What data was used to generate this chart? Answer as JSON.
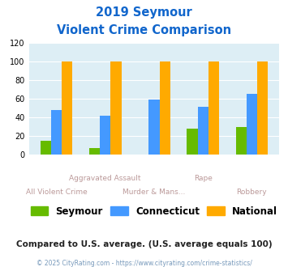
{
  "title_line1": "2019 Seymour",
  "title_line2": "Violent Crime Comparison",
  "categories": [
    "All Violent Crime",
    "Aggravated Assault",
    "Murder & Mans...",
    "Rape",
    "Robbery"
  ],
  "seymour": [
    15,
    7,
    0,
    28,
    30
  ],
  "connecticut": [
    48,
    42,
    59,
    51,
    65
  ],
  "national": [
    100,
    100,
    100,
    100,
    100
  ],
  "color_seymour": "#66bb00",
  "color_connecticut": "#4499ff",
  "color_national": "#ffaa00",
  "ylim": [
    0,
    120
  ],
  "yticks": [
    0,
    20,
    40,
    60,
    80,
    100,
    120
  ],
  "bg_color": "#ddeef5",
  "note": "Compared to U.S. average. (U.S. average equals 100)",
  "footer": "© 2025 CityRating.com - https://www.cityrating.com/crime-statistics/",
  "title_color": "#1166cc",
  "note_color": "#222222",
  "footer_color": "#7799bb",
  "xlabel_color": "#bb9999",
  "bar_width": 0.22
}
